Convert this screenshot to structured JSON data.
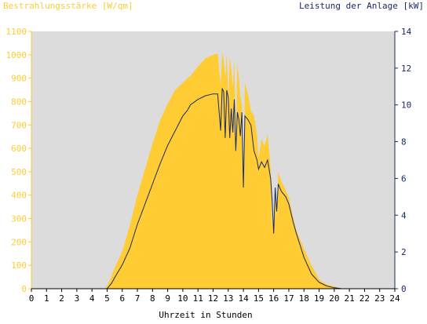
{
  "chart_data": {
    "type": "area",
    "title": "",
    "xlabel": "Uhrzeit in Stunden",
    "ylabel_left": "Bestrahlungsstärke [W/qm]",
    "ylabel_right": "Leistung der Anlage [kW]",
    "xlim": [
      0,
      24
    ],
    "ylim_left": [
      0,
      1100
    ],
    "ylim_right": [
      0,
      14
    ],
    "x_ticks": [
      "0",
      "1",
      "2",
      "3",
      "4",
      "5",
      "6",
      "7",
      "8",
      "9",
      "10",
      "11",
      "12",
      "13",
      "14",
      "15",
      "16",
      "17",
      "18",
      "19",
      "20",
      "21",
      "22",
      "23",
      "24"
    ],
    "y_ticks_left": [
      "0",
      "100",
      "200",
      "300",
      "400",
      "500",
      "600",
      "700",
      "800",
      "900",
      "1000",
      "1100"
    ],
    "y_ticks_right": [
      "0",
      "2",
      "4",
      "6",
      "8",
      "10",
      "12",
      "14"
    ],
    "colors": {
      "plot_background": "#dcdcdc",
      "irradiance_fill": "#ffcc33",
      "power_line": "#1a2a66",
      "left_axis": "#ffcc33",
      "right_axis": "#1a2a66"
    },
    "series": [
      {
        "key": "irradiance",
        "axis": "left",
        "style": "area",
        "x": [
          0,
          4.9,
          5.0,
          5.2,
          5.5,
          6.0,
          6.5,
          7.0,
          7.5,
          8.0,
          8.5,
          9.0,
          9.5,
          10.0,
          10.3,
          10.5,
          11.0,
          11.5,
          12.0,
          12.3,
          12.5,
          12.6,
          12.7,
          12.8,
          12.9,
          13.0,
          13.1,
          13.2,
          13.3,
          13.4,
          13.5,
          13.6,
          13.7,
          13.8,
          13.9,
          14.0,
          14.1,
          14.3,
          14.5,
          14.7,
          14.9,
          15.0,
          15.2,
          15.4,
          15.6,
          15.8,
          15.9,
          16.0,
          16.1,
          16.2,
          16.3,
          16.5,
          16.8,
          17.0,
          17.3,
          17.5,
          18.0,
          18.5,
          19.0,
          19.5,
          20.0,
          20.3,
          20.5,
          21.0,
          24
        ],
        "y": [
          0,
          0,
          15,
          40,
          90,
          160,
          270,
          400,
          510,
          620,
          720,
          790,
          850,
          880,
          900,
          910,
          950,
          985,
          1000,
          1005,
          870,
          1010,
          980,
          900,
          1005,
          810,
          990,
          940,
          860,
          980,
          620,
          960,
          900,
          820,
          790,
          440,
          880,
          830,
          760,
          740,
          660,
          560,
          640,
          610,
          660,
          520,
          270,
          300,
          430,
          300,
          500,
          460,
          420,
          390,
          300,
          250,
          170,
          100,
          40,
          18,
          10,
          5,
          0,
          0,
          0
        ]
      },
      {
        "key": "power",
        "axis": "right",
        "style": "line",
        "x": [
          0,
          5.0,
          5.3,
          5.5,
          6.0,
          6.5,
          7.0,
          7.5,
          8.0,
          8.5,
          9.0,
          9.5,
          10.0,
          10.3,
          10.5,
          11.0,
          11.5,
          12.0,
          12.3,
          12.5,
          12.6,
          12.7,
          12.8,
          12.9,
          13.0,
          13.1,
          13.2,
          13.3,
          13.4,
          13.5,
          13.6,
          13.7,
          13.8,
          13.9,
          14.0,
          14.1,
          14.3,
          14.5,
          14.7,
          14.9,
          15.0,
          15.2,
          15.4,
          15.6,
          15.8,
          15.9,
          16.0,
          16.1,
          16.2,
          16.3,
          16.5,
          16.8,
          17.0,
          17.3,
          17.5,
          18.0,
          18.5,
          19.0,
          19.5,
          20.0,
          20.3,
          20.5,
          24
        ],
        "y": [
          0,
          0,
          0.3,
          0.6,
          1.3,
          2.2,
          3.5,
          4.6,
          5.7,
          6.8,
          7.8,
          8.6,
          9.4,
          9.7,
          10.0,
          10.3,
          10.5,
          10.6,
          10.6,
          8.6,
          10.9,
          10.7,
          8.2,
          10.8,
          10.4,
          8.2,
          9.8,
          8.5,
          10.3,
          7.5,
          9.6,
          9.2,
          8.3,
          9.6,
          5.5,
          9.4,
          9.2,
          8.9,
          7.5,
          7.0,
          6.5,
          6.9,
          6.6,
          7.0,
          6.0,
          4.8,
          3.0,
          5.5,
          4.2,
          5.7,
          5.3,
          5.0,
          4.6,
          3.6,
          3.0,
          1.7,
          0.8,
          0.35,
          0.15,
          0.05,
          0.02,
          0,
          0
        ]
      }
    ]
  }
}
